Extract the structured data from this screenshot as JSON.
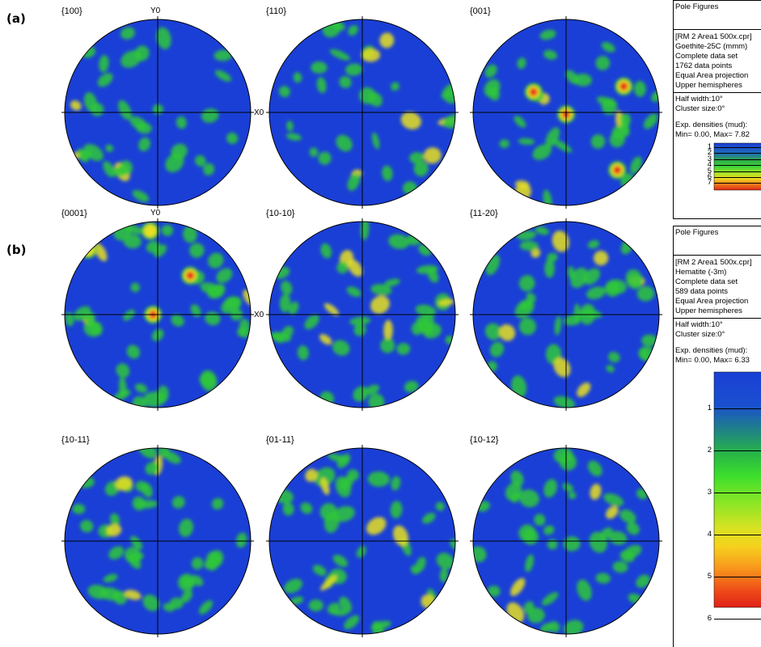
{
  "panel_labels": {
    "a": "(a)",
    "b": "(b)"
  },
  "axis_labels": {
    "y": "Y0",
    "x": "X0"
  },
  "legend_a": {
    "heading": "Pole Figures",
    "info": [
      "[RM 2  Area1 500x.cpr]",
      "Goethite-25C (mmm)",
      "Complete data set",
      "1762 data points",
      "Equal Area projection",
      "Upper hemispheres"
    ],
    "params": [
      "Half width:10°",
      "Cluster size:0°"
    ],
    "densities": [
      "Exp. densities (mud):",
      "Min= 0.00, Max= 7.82"
    ],
    "scale_ticks": [
      "1",
      "2",
      "3",
      "4",
      "5",
      "6",
      "7"
    ]
  },
  "legend_b": {
    "heading": "Pole Figures",
    "info": [
      "[RM 2  Area1 500x.cpr]",
      "Hematite (-3m)",
      "Complete data set",
      "589 data points",
      "Equal Area projection",
      "Upper hemispheres"
    ],
    "params": [
      "Half width:10°",
      "Cluster size:0°"
    ],
    "densities": [
      "Exp. densities (mud):",
      "Min= 0.00, Max= 6.33"
    ],
    "scale_ticks": [
      "1",
      "2",
      "3",
      "4",
      "5",
      "6"
    ]
  },
  "colors": {
    "low": "#1a3fd6",
    "mid": "#2ec83a",
    "high": "#e8e021",
    "peak": "#e8261a"
  },
  "chart_data": [
    {
      "type": "heatmap",
      "name": "{100}",
      "projection": "equal area, upper hemisphere",
      "density_range": [
        0,
        7.82
      ],
      "hotspots": []
    },
    {
      "type": "heatmap",
      "name": "{110}",
      "projection": "equal area, upper hemisphere",
      "density_range": [
        0,
        7.82
      ],
      "hotspots": []
    },
    {
      "type": "heatmap",
      "name": "{001}",
      "projection": "equal area, upper hemisphere",
      "density_range": [
        0,
        7.82
      ],
      "hotspots": []
    },
    {
      "type": "heatmap",
      "name": "{0001}",
      "projection": "equal area, upper hemisphere",
      "density_range": [
        0,
        6.33
      ],
      "hotspots": []
    },
    {
      "type": "heatmap",
      "name": "{10-10}",
      "projection": "equal area, upper hemisphere",
      "density_range": [
        0,
        6.33
      ],
      "hotspots": []
    },
    {
      "type": "heatmap",
      "name": "{11-20}",
      "projection": "equal area, upper hemisphere",
      "density_range": [
        0,
        6.33
      ],
      "hotspots": []
    },
    {
      "type": "heatmap",
      "name": "{10-11}",
      "projection": "equal area, upper hemisphere",
      "density_range": [
        0,
        6.33
      ],
      "hotspots": []
    },
    {
      "type": "heatmap",
      "name": "{01-11}",
      "projection": "equal area, upper hemisphere",
      "density_range": [
        0,
        6.33
      ],
      "hotspots": []
    },
    {
      "type": "heatmap",
      "name": "{10-12}",
      "projection": "equal area, upper hemisphere",
      "density_range": [
        0,
        6.33
      ],
      "hotspots": []
    }
  ]
}
